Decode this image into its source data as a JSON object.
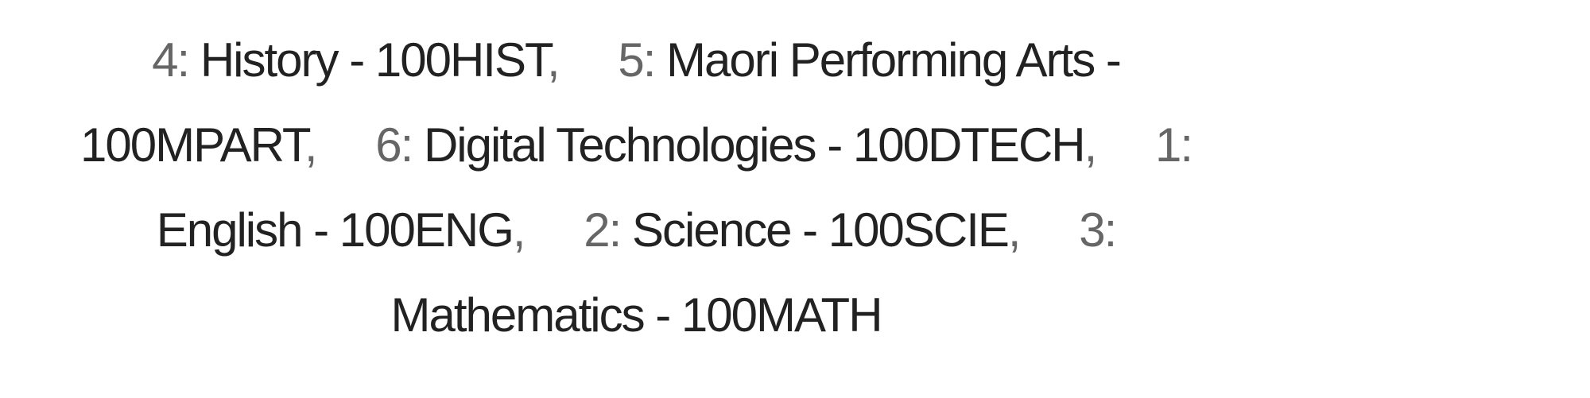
{
  "colors": {
    "text": "#222222",
    "muted": "#666666"
  },
  "subjects": [
    {
      "num": "4",
      "label": "History - 100HIST"
    },
    {
      "num": "5",
      "label": "Maori Performing Arts - 100MPART"
    },
    {
      "num": "6",
      "label": "Digital Technologies - 100DTECH"
    },
    {
      "num": "1",
      "label": "English - 100ENG"
    },
    {
      "num": "2",
      "label": "Science - 100SCIE"
    },
    {
      "num": "3",
      "label": "Mathematics - 100MATH"
    }
  ],
  "separator": ","
}
